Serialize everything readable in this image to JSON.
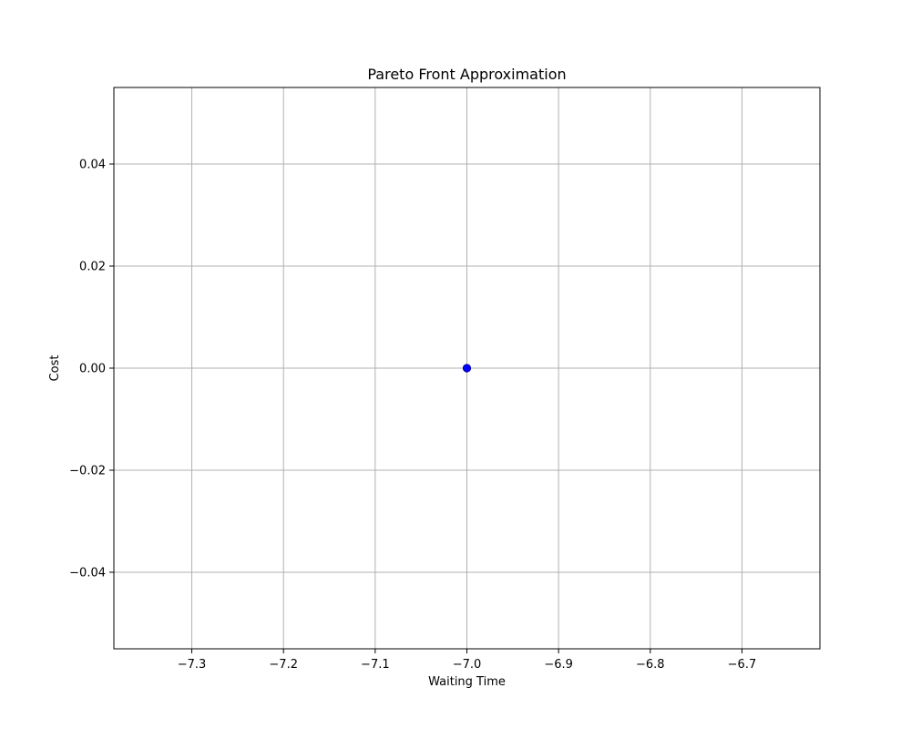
{
  "chart_data": {
    "type": "scatter",
    "title": "Pareto Front Approximation",
    "xlabel": "Waiting Time",
    "ylabel": "Cost",
    "xlim": [
      -7.385,
      -6.615
    ],
    "ylim": [
      -0.055,
      0.055
    ],
    "x_ticks": [
      -7.3,
      -7.2,
      -7.1,
      -7.0,
      -6.9,
      -6.8,
      -6.7
    ],
    "x_tick_labels": [
      "−7.3",
      "−7.2",
      "−7.1",
      "−7.0",
      "−6.9",
      "−6.8",
      "−6.7"
    ],
    "y_ticks": [
      -0.04,
      -0.02,
      0.0,
      0.02,
      0.04
    ],
    "y_tick_labels": [
      "−0.04",
      "−0.02",
      "0.00",
      "0.02",
      "0.04"
    ],
    "grid": true,
    "series": [
      {
        "x": [
          -7.0
        ],
        "y": [
          0.0
        ],
        "color": "#0000ff"
      }
    ]
  }
}
